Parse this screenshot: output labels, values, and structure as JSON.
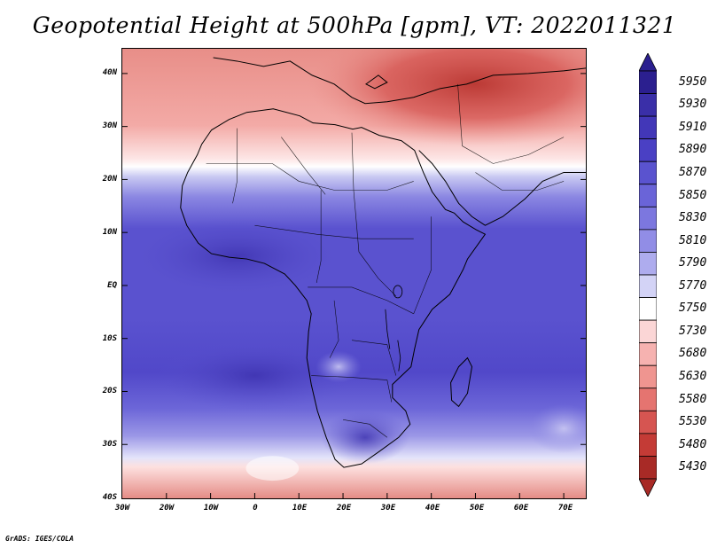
{
  "title": "Geopotential Height at 500hPa [gpm], VT: 2022011321",
  "credit": "GrADS: IGES/COLA",
  "latitude_labels": [
    "40N",
    "30N",
    "20N",
    "10N",
    "EQ",
    "10S",
    "20S",
    "30S",
    "40S"
  ],
  "longitude_labels": [
    "30W",
    "20W",
    "10W",
    "0",
    "10E",
    "20E",
    "30E",
    "40E",
    "50E",
    "60E",
    "70E"
  ],
  "chart_data": {
    "type": "heatmap",
    "title": "Geopotential Height at 500hPa [gpm], VT: 2022011321",
    "variable": "Geopotential Height at 500hPa",
    "units": "gpm",
    "valid_time": "2022011321",
    "lon_range": [
      -30,
      75
    ],
    "lat_range": [
      -40,
      45
    ],
    "colorbar_levels": [
      5950,
      5930,
      5910,
      5890,
      5870,
      5850,
      5830,
      5810,
      5790,
      5770,
      5750,
      5730,
      5680,
      5630,
      5580,
      5530,
      5480,
      5430
    ],
    "colorbar_colors": [
      "#2b1f8f",
      "#3a2fa8",
      "#4237b8",
      "#4a40c4",
      "#5a53cf",
      "#6a64d8",
      "#7c77df",
      "#918de6",
      "#aeacee",
      "#d3d3f6",
      "#ffffff",
      "#fbd6d6",
      "#f6b2b0",
      "#ef9590",
      "#e57470",
      "#d65551",
      "#c43b36",
      "#a82a26"
    ]
  }
}
